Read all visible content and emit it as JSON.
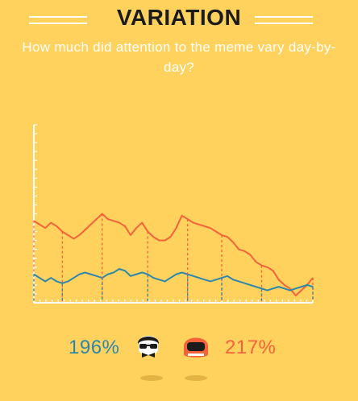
{
  "header": {
    "title": "VARIATION",
    "subtitle": "How much did attention to the meme vary day-by-day?"
  },
  "legend": {
    "blue_value": "196%",
    "orange_value": "217%",
    "blue_icon": "hipster-face-icon",
    "orange_icon": "helmet-face-icon"
  },
  "colors": {
    "background": "#FFD25E",
    "blue": "#2E86AB",
    "orange": "#F4623A",
    "axis": "#ffffff"
  },
  "chart_data": {
    "type": "line",
    "x": [
      0,
      1,
      2,
      3,
      4,
      5,
      6,
      7,
      8,
      9,
      10,
      11,
      12,
      13,
      14,
      15,
      16,
      17,
      18,
      19,
      20,
      21,
      22,
      23,
      24,
      25,
      26,
      27,
      28,
      29,
      30,
      31,
      32,
      33,
      34,
      35,
      36,
      37,
      38,
      39,
      40,
      41,
      42,
      43,
      44,
      45,
      46,
      47,
      48,
      49
    ],
    "ylim": [
      0,
      20
    ],
    "grid": false,
    "series": [
      {
        "values": [
          9.2,
          8.8,
          8.4,
          9.0,
          8.6,
          8.0,
          7.6,
          7.2,
          7.6,
          8.2,
          8.8,
          9.4,
          10.0,
          9.4,
          9.2,
          9.0,
          8.6,
          7.6,
          8.4,
          9.0,
          8.0,
          7.4,
          7.0,
          7.0,
          7.4,
          8.4,
          9.8,
          9.4,
          9.0,
          8.8,
          8.6,
          8.4,
          8.0,
          7.6,
          7.4,
          6.8,
          6.0,
          5.8,
          5.4,
          4.6,
          4.2,
          4.0,
          3.6,
          2.6,
          2.0,
          1.6,
          0.8,
          1.4,
          2.0,
          2.8
        ],
        "color": "#F4623A"
      },
      {
        "values": [
          3.2,
          2.8,
          2.4,
          2.8,
          2.4,
          2.2,
          2.4,
          2.8,
          3.2,
          3.4,
          3.2,
          3.0,
          2.8,
          3.2,
          3.4,
          3.8,
          3.6,
          3.0,
          3.2,
          3.4,
          3.2,
          2.8,
          2.6,
          2.4,
          2.8,
          3.2,
          3.4,
          3.2,
          3.0,
          2.8,
          2.6,
          2.4,
          2.6,
          2.8,
          3.0,
          2.6,
          2.4,
          2.2,
          2.0,
          1.8,
          1.6,
          1.4,
          1.6,
          1.8,
          1.6,
          1.4,
          1.6,
          1.8,
          2.0,
          1.8
        ],
        "color": "#2E86AB"
      }
    ]
  }
}
